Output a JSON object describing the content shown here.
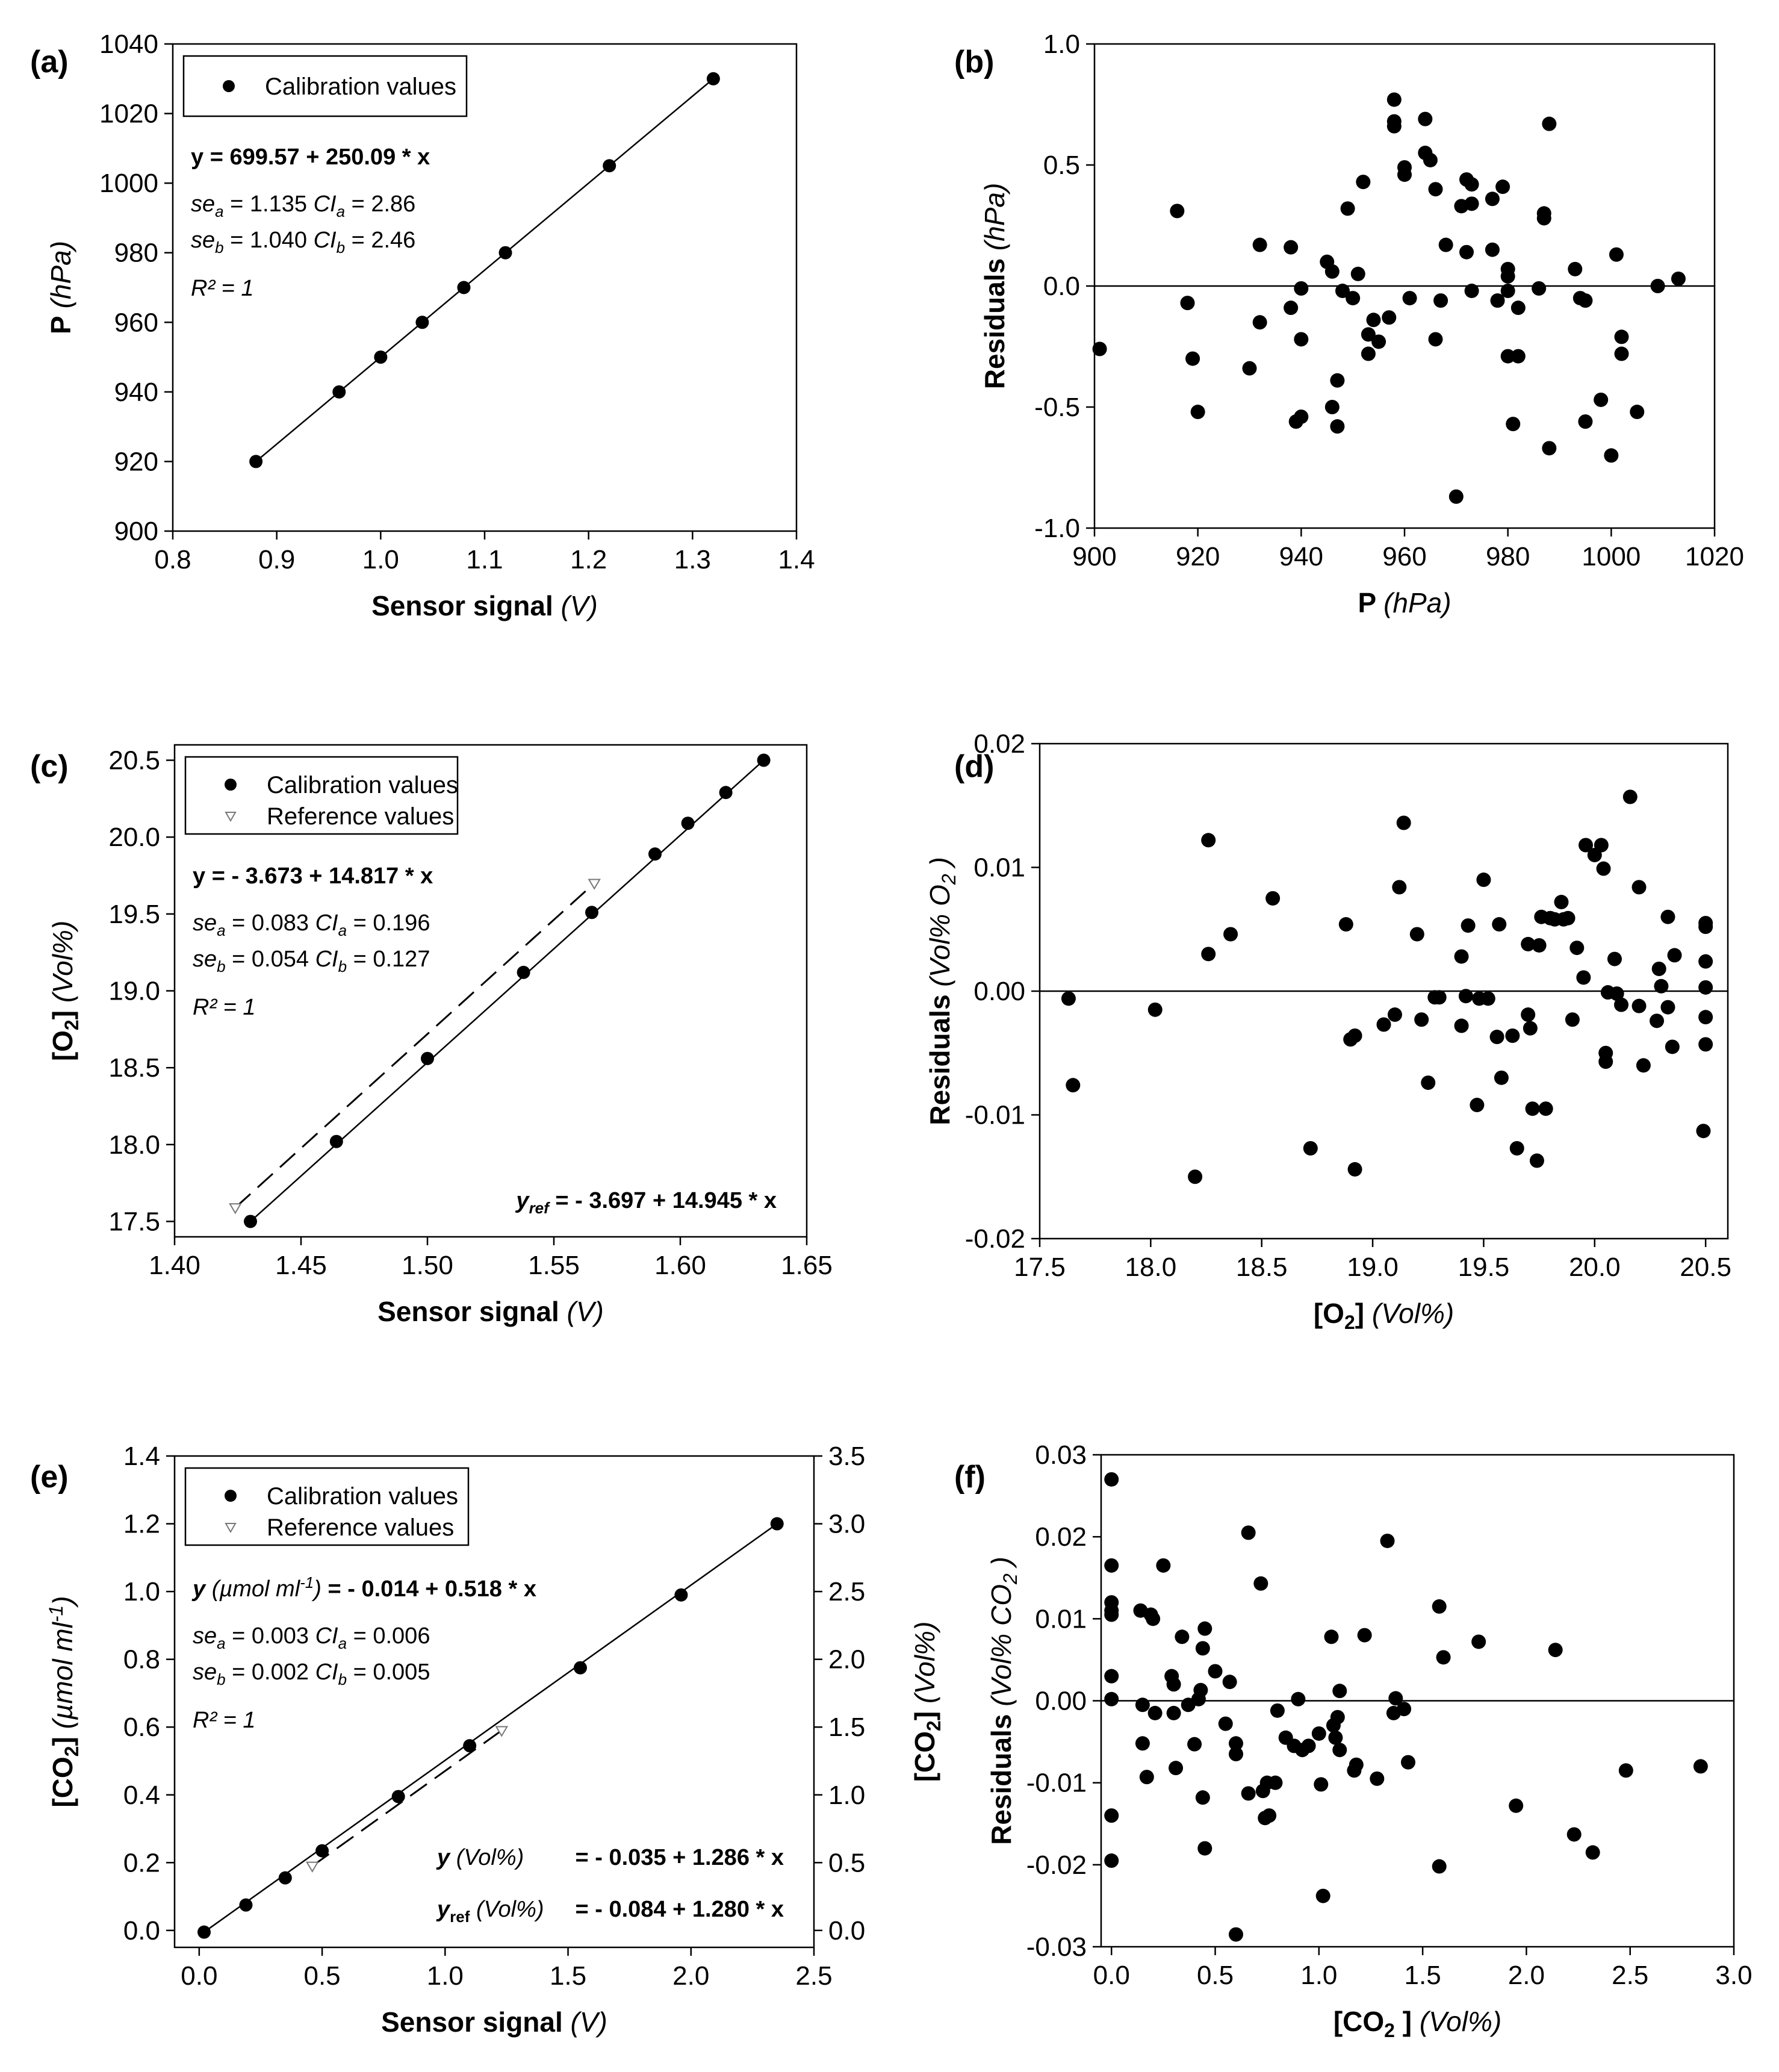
{
  "figure": {
    "panel_label_fmt": "({letter})"
  },
  "chart_data": [
    {
      "id": "a",
      "letter": "a",
      "type": "scatter",
      "xlabel": "Sensor signal",
      "xunit": "(V)",
      "ylabel": "P",
      "yunit": "(hPa)",
      "xlim": [
        0.8,
        1.4
      ],
      "ylim": [
        900,
        1040
      ],
      "xticks": [
        0.8,
        0.9,
        1.0,
        1.1,
        1.2,
        1.3,
        1.4
      ],
      "yticks": [
        900,
        920,
        940,
        960,
        980,
        1000,
        1020,
        1040
      ],
      "xtick_decimals": 1,
      "ytick_decimals": 0,
      "grid": false,
      "legend": [
        {
          "name": "Calibration values",
          "marker": "circle"
        }
      ],
      "series": [
        {
          "name": "Calibration values",
          "marker": "circle",
          "x": [
            0.88,
            0.96,
            1.0,
            1.04,
            1.08,
            1.12,
            1.22,
            1.32
          ],
          "y": [
            920,
            940,
            950,
            960,
            970,
            980,
            1005,
            1030
          ]
        }
      ],
      "fit_lines": [
        {
          "name": "fit",
          "style": "solid",
          "x": [
            0.88,
            1.32
          ],
          "y": [
            920,
            1030
          ]
        }
      ],
      "stats": {
        "equation": "y = 699.57 + 250.09 * x",
        "se_a": "= 1.135",
        "ci_a": "= 2.86",
        "se_b": "= 1.040",
        "ci_b": "= 2.46",
        "r2": "R² = 1"
      }
    },
    {
      "id": "b",
      "letter": "b",
      "type": "scatter",
      "xlabel": "P",
      "xunit": "(hPa)",
      "ylabel": "Residuals",
      "yunit": "(hPa)",
      "xlim": [
        900,
        1020
      ],
      "ylim": [
        -1.0,
        1.0
      ],
      "xticks": [
        900,
        920,
        940,
        960,
        980,
        1000,
        1020
      ],
      "yticks": [
        -1.0,
        -0.5,
        0.0,
        0.5,
        1.0
      ],
      "xtick_decimals": 0,
      "ytick_decimals": 1,
      "grid": false,
      "zero_line": true,
      "series": [
        {
          "name": "Residuals",
          "marker": "circle",
          "x": [
            901,
            916,
            918,
            919,
            920,
            930,
            932,
            932,
            938,
            938,
            939,
            940,
            940,
            940,
            945,
            946,
            946,
            947,
            947,
            948,
            949,
            950,
            951,
            952,
            953,
            953,
            954,
            955,
            957,
            958,
            958,
            958,
            960,
            960,
            961,
            964,
            964,
            965,
            966,
            966,
            967,
            968,
            970,
            971,
            972,
            972,
            973,
            973,
            973,
            977,
            977,
            978,
            979,
            980,
            980,
            980,
            980,
            981,
            982,
            982,
            986,
            987,
            987,
            988,
            988,
            993,
            994,
            995,
            995,
            998,
            1000,
            1001,
            1002,
            1002,
            1005,
            1009,
            1013
          ],
          "y": [
            -0.26,
            0.31,
            -0.07,
            -0.3,
            -0.52,
            -0.34,
            0.17,
            -0.15,
            0.16,
            -0.09,
            -0.56,
            -0.54,
            -0.01,
            -0.22,
            0.1,
            0.06,
            -0.5,
            -0.58,
            -0.39,
            -0.02,
            0.32,
            -0.05,
            0.05,
            0.43,
            -0.2,
            -0.28,
            -0.14,
            -0.23,
            -0.13,
            0.77,
            0.68,
            0.66,
            0.49,
            0.46,
            -0.05,
            0.69,
            0.55,
            0.52,
            -0.22,
            0.4,
            -0.06,
            0.17,
            -0.87,
            0.33,
            0.14,
            0.44,
            0.42,
            0.34,
            -0.02,
            0.15,
            0.36,
            -0.06,
            0.41,
            0.07,
            0.04,
            -0.02,
            -0.29,
            -0.57,
            -0.09,
            -0.29,
            -0.01,
            0.3,
            0.28,
            0.67,
            -0.67,
            0.07,
            -0.05,
            -0.06,
            -0.56,
            -0.47,
            -0.7,
            0.13,
            -0.21,
            -0.28,
            -0.52,
            0.0,
            0.03
          ]
        }
      ]
    },
    {
      "id": "c",
      "letter": "c",
      "type": "scatter",
      "xlabel": "Sensor signal",
      "xunit": "(V)",
      "ylabel": "[O",
      "ylabel_sub": "2",
      "ylabel_close": "]",
      "yunit": "(Vol%)",
      "xlim": [
        1.4,
        1.65
      ],
      "ylim": [
        17.4,
        20.6
      ],
      "xticks": [
        1.4,
        1.45,
        1.5,
        1.55,
        1.6,
        1.65
      ],
      "yticks": [
        17.5,
        18.0,
        18.5,
        19.0,
        19.5,
        20.0,
        20.5
      ],
      "xtick_decimals": 2,
      "ytick_decimals": 1,
      "grid": false,
      "legend": [
        {
          "name": "Calibration values",
          "marker": "circle"
        },
        {
          "name": "Reference values",
          "marker": "triangle"
        }
      ],
      "series": [
        {
          "name": "Calibration values",
          "marker": "circle",
          "x": [
            1.43,
            1.464,
            1.5,
            1.538,
            1.565,
            1.59,
            1.603,
            1.618,
            1.633
          ],
          "y": [
            17.5,
            18.02,
            18.56,
            19.12,
            19.51,
            19.89,
            20.09,
            20.29,
            20.5
          ]
        },
        {
          "name": "Reference values",
          "marker": "triangle",
          "x": [
            1.424,
            1.566
          ],
          "y": [
            17.59,
            19.7
          ]
        }
      ],
      "fit_lines": [
        {
          "name": "fit",
          "style": "solid",
          "x": [
            1.43,
            1.633
          ],
          "y": [
            17.5,
            20.5
          ]
        },
        {
          "name": "ref",
          "style": "dashed",
          "x": [
            1.424,
            1.566
          ],
          "y": [
            17.59,
            19.7
          ]
        }
      ],
      "stats": {
        "equation": "y = - 3.673 + 14.817 * x",
        "se_a": "= 0.083",
        "ci_a": "= 0.196",
        "se_b": "= 0.054",
        "ci_b": "= 0.127",
        "r2": "R² = 1",
        "ref_equation": "= - 3.697 + 14.945 * x"
      }
    },
    {
      "id": "d",
      "letter": "d",
      "type": "scatter",
      "xlabel": "[O",
      "xlabel_sub": "2",
      "xlabel_close": "]",
      "xunit": "(Vol%)",
      "ylabel": "Residuals",
      "yunit": "(Vol% O",
      "yunit_sub": "2",
      "yunit_close": ")",
      "xlim": [
        17.5,
        20.6
      ],
      "ylim": [
        -0.02,
        0.02
      ],
      "xticks": [
        17.5,
        18.0,
        18.5,
        19.0,
        19.5,
        20.0,
        20.5
      ],
      "yticks": [
        -0.02,
        -0.01,
        0.0,
        0.01,
        0.02
      ],
      "xtick_decimals": 1,
      "ytick_decimals": 2,
      "grid": false,
      "zero_line": true,
      "series": [
        {
          "name": "Residuals",
          "marker": "circle",
          "x": [
            17.63,
            17.65,
            18.02,
            18.2,
            18.26,
            18.26,
            18.36,
            18.55,
            18.72,
            18.88,
            18.9,
            18.92,
            18.92,
            19.05,
            19.1,
            19.12,
            19.14,
            19.2,
            19.22,
            19.25,
            19.28,
            19.3,
            19.4,
            19.4,
            19.42,
            19.43,
            19.47,
            19.48,
            19.5,
            19.52,
            19.56,
            19.57,
            19.58,
            19.63,
            19.65,
            19.7,
            19.7,
            19.71,
            19.72,
            19.74,
            19.75,
            19.76,
            19.78,
            19.8,
            19.82,
            19.85,
            19.86,
            19.88,
            19.9,
            19.92,
            19.95,
            19.96,
            20.0,
            20.03,
            20.04,
            20.05,
            20.05,
            20.06,
            20.09,
            20.1,
            20.12,
            20.16,
            20.2,
            20.2,
            20.22,
            20.28,
            20.29,
            20.3,
            20.33,
            20.33,
            20.35,
            20.36,
            20.5,
            20.5,
            20.5,
            20.5,
            20.5,
            20.5,
            20.49
          ],
          "y": [
            -0.0006,
            -0.0076,
            -0.0015,
            -0.015,
            0.0122,
            0.003,
            0.0046,
            0.0075,
            -0.0127,
            0.0054,
            -0.0039,
            -0.0144,
            -0.0036,
            -0.0027,
            -0.0019,
            0.0084,
            0.0136,
            0.0046,
            -0.0023,
            -0.0074,
            -0.0005,
            -0.0005,
            0.0028,
            -0.0028,
            -0.0004,
            0.0053,
            -0.0092,
            -0.0006,
            0.009,
            -0.0006,
            -0.0037,
            0.0054,
            -0.007,
            -0.0036,
            -0.0127,
            0.0038,
            -0.0019,
            -0.003,
            -0.0095,
            -0.0137,
            0.0037,
            0.006,
            -0.0095,
            0.0059,
            0.0058,
            0.0072,
            0.0058,
            0.0059,
            -0.0023,
            0.0035,
            0.0011,
            0.0118,
            0.011,
            0.0118,
            0.0099,
            -0.0057,
            -0.005,
            -0.0001,
            0.0026,
            -0.0002,
            -0.0011,
            0.0157,
            0.0084,
            -0.0012,
            -0.006,
            -0.0024,
            0.0018,
            0.0004,
            -0.0013,
            0.006,
            -0.0045,
            0.0029,
            0.0055,
            0.0052,
            0.0024,
            0.0003,
            -0.0021,
            -0.0043,
            -0.0113
          ]
        }
      ]
    },
    {
      "id": "e",
      "letter": "e",
      "type": "scatter",
      "xlabel": "Sensor signal",
      "xunit": "(V)",
      "ylabel": "[CO",
      "ylabel_sub": "2",
      "ylabel_close": "]",
      "yunit": "(µmol ml",
      "yunit_sup": "-1",
      "yunit_close": ")",
      "y2label": "[CO",
      "y2label_sub": "2",
      "y2label_close": "]",
      "y2unit": "(Vol%)",
      "xlim": [
        -0.1,
        2.5
      ],
      "ylim": [
        -0.05,
        1.4
      ],
      "y2lim": [
        -0.125,
        3.5
      ],
      "xticks": [
        0.0,
        0.5,
        1.0,
        1.5,
        2.0,
        2.5
      ],
      "yticks": [
        0.0,
        0.2,
        0.4,
        0.6,
        0.8,
        1.0,
        1.2,
        1.4
      ],
      "y2ticks": [
        0.0,
        0.5,
        1.0,
        1.5,
        2.0,
        2.5,
        3.0,
        3.5
      ],
      "xtick_decimals": 1,
      "ytick_decimals": 1,
      "y2tick_decimals": 1,
      "grid": false,
      "legend": [
        {
          "name": "Calibration values",
          "marker": "circle"
        },
        {
          "name": "Reference values",
          "marker": "triangle"
        }
      ],
      "series": [
        {
          "name": "Calibration values",
          "marker": "circle",
          "x": [
            0.02,
            0.19,
            0.35,
            0.5,
            0.81,
            1.1,
            1.55,
            1.96,
            2.35
          ],
          "y": [
            -0.005,
            0.075,
            0.155,
            0.235,
            0.395,
            0.545,
            0.775,
            0.99,
            1.2
          ]
        },
        {
          "name": "Reference values",
          "marker": "triangle",
          "x": [
            0.46,
            1.23
          ],
          "y": [
            0.19,
            0.59
          ]
        }
      ],
      "fit_lines": [
        {
          "name": "fit",
          "style": "solid",
          "x": [
            0.02,
            2.35
          ],
          "y": [
            -0.005,
            1.2
          ]
        },
        {
          "name": "ref",
          "style": "dashed",
          "x": [
            0.46,
            1.23
          ],
          "y": [
            0.19,
            0.59
          ]
        }
      ],
      "stats": {
        "equation_prefix": "y",
        "equation_unit": "(µmol ml",
        "equation_unit_sup": "-1",
        "equation_unit_close": ")",
        "equation": "= - 0.014 + 0.518 * x",
        "se_a": "= 0.003",
        "ci_a": "= 0.006",
        "se_b": "= 0.002",
        "ci_b": "= 0.005",
        "r2": "R² = 1",
        "vol_unit": "(Vol%)",
        "vol_equation": "= - 0.035 + 1.286 * x",
        "ref_vol_equation": "= - 0.084 + 1.280 * x"
      }
    },
    {
      "id": "f",
      "letter": "f",
      "type": "scatter",
      "xlabel": "[CO",
      "xlabel_sub": "2",
      "xlabel_close": " ]",
      "xunit": "(Vol%)",
      "ylabel": "Residuals",
      "yunit": "(Vol% CO",
      "yunit_sub": "2",
      "yunit_close": ")",
      "xlim": [
        -0.05,
        3.0
      ],
      "ylim": [
        -0.03,
        0.03
      ],
      "xticks": [
        0.0,
        0.5,
        1.0,
        1.5,
        2.0,
        2.5,
        3.0
      ],
      "yticks": [
        -0.03,
        -0.02,
        -0.01,
        0.0,
        0.01,
        0.02,
        0.03
      ],
      "xtick_decimals": 1,
      "ytick_decimals": 2,
      "grid": false,
      "zero_line": true,
      "series": [
        {
          "name": "Residuals",
          "marker": "circle",
          "x": [
            0.0,
            0.0,
            0.0,
            0.0,
            0.0,
            0.0,
            0.0,
            0.0,
            0.0,
            0.14,
            0.15,
            0.15,
            0.17,
            0.19,
            0.2,
            0.21,
            0.25,
            0.29,
            0.3,
            0.3,
            0.31,
            0.34,
            0.37,
            0.4,
            0.42,
            0.43,
            0.44,
            0.44,
            0.45,
            0.45,
            0.5,
            0.55,
            0.57,
            0.6,
            0.6,
            0.6,
            0.66,
            0.66,
            0.72,
            0.73,
            0.74,
            0.75,
            0.76,
            0.79,
            0.8,
            0.84,
            0.88,
            0.9,
            0.92,
            0.95,
            1.0,
            1.01,
            1.02,
            1.06,
            1.07,
            1.08,
            1.09,
            1.1,
            1.1,
            1.17,
            1.18,
            1.22,
            1.28,
            1.33,
            1.36,
            1.37,
            1.41,
            1.43,
            1.58,
            1.58,
            1.6,
            1.77,
            1.95,
            2.14,
            2.23,
            2.32,
            2.48,
            2.84
          ],
          "y": [
            0.027,
            0.0165,
            0.012,
            0.011,
            0.0105,
            0.003,
            0.0002,
            -0.014,
            -0.0195,
            0.011,
            -0.0005,
            -0.0052,
            -0.0093,
            0.0105,
            0.01,
            -0.0015,
            0.0165,
            0.003,
            0.002,
            -0.0015,
            -0.0082,
            0.0078,
            -0.0005,
            -0.0053,
            0.0002,
            0.0013,
            0.0064,
            -0.0118,
            -0.018,
            0.0088,
            0.0036,
            -0.0028,
            0.0023,
            -0.0065,
            -0.0285,
            -0.0052,
            0.0205,
            -0.0113,
            0.0143,
            -0.011,
            -0.0143,
            -0.01,
            -0.014,
            -0.01,
            -0.0012,
            -0.0045,
            -0.0055,
            0.0002,
            -0.006,
            -0.0055,
            -0.004,
            -0.0102,
            -0.0238,
            0.0078,
            -0.003,
            -0.0045,
            -0.002,
            -0.006,
            0.0012,
            -0.0085,
            -0.0078,
            0.008,
            -0.0095,
            0.0195,
            -0.0015,
            0.0003,
            -0.001,
            -0.0075,
            0.0115,
            -0.0202,
            0.0053,
            0.0072,
            -0.0128,
            0.0062,
            -0.0163,
            -0.0185,
            -0.0085,
            -0.008
          ]
        }
      ]
    }
  ]
}
